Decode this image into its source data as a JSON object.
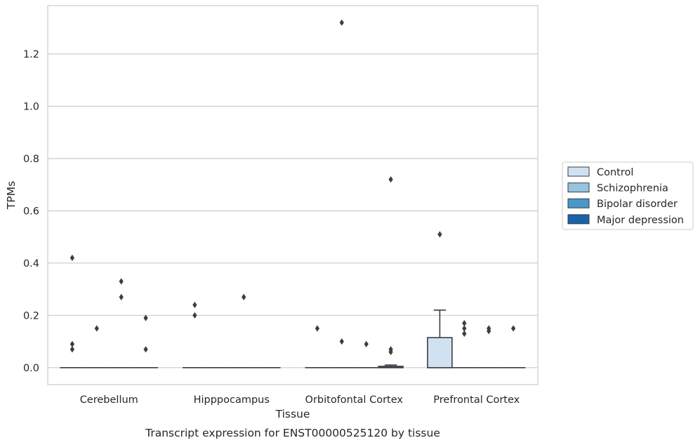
{
  "chart_data": {
    "type": "box",
    "caption": "Transcript expression for ENST00000525120 by tissue",
    "xlabel": "Tissue",
    "ylabel": "TPMs",
    "categories": [
      "Cerebellum",
      "Hipppocampus",
      "Orbitofontal Cortex",
      "Prefrontal Cortex"
    ],
    "ylim": [
      -0.065,
      1.385
    ],
    "yticks": [
      0.0,
      0.2,
      0.4,
      0.6,
      0.8,
      1.0,
      1.2
    ],
    "ytick_labels": [
      "0.0",
      "0.2",
      "0.4",
      "0.6",
      "0.8",
      "1.0",
      "1.2"
    ],
    "grid": "horizontal",
    "legend_position": "right",
    "series": [
      {
        "name": "Control",
        "color": "#d0e1f2",
        "boxes": [
          {
            "q1": 0,
            "median": 0,
            "q3": 0,
            "whisker_low": 0,
            "whisker_high": 0,
            "outliers": [
              0.42,
              0.09,
              0.07
            ]
          },
          {
            "q1": 0,
            "median": 0,
            "q3": 0,
            "whisker_low": 0,
            "whisker_high": 0,
            "outliers": [
              0.24,
              0.2
            ]
          },
          {
            "q1": 0,
            "median": 0,
            "q3": 0,
            "whisker_low": 0,
            "whisker_high": 0,
            "outliers": [
              0.15
            ]
          },
          {
            "q1": 0,
            "median": 0,
            "q3": 0.115,
            "whisker_low": 0,
            "whisker_high": 0.22,
            "outliers": [
              0.51
            ]
          }
        ]
      },
      {
        "name": "Schizophrenia",
        "color": "#94c4df",
        "boxes": [
          {
            "q1": 0,
            "median": 0,
            "q3": 0,
            "whisker_low": 0,
            "whisker_high": 0,
            "outliers": [
              0.15
            ]
          },
          {
            "q1": 0,
            "median": 0,
            "q3": 0,
            "whisker_low": 0,
            "whisker_high": 0,
            "outliers": []
          },
          {
            "q1": 0,
            "median": 0,
            "q3": 0,
            "whisker_low": 0,
            "whisker_high": 0,
            "outliers": [
              1.32,
              0.1
            ]
          },
          {
            "q1": 0,
            "median": 0,
            "q3": 0,
            "whisker_low": 0,
            "whisker_high": 0,
            "outliers": [
              0.17,
              0.15,
              0.13
            ]
          }
        ]
      },
      {
        "name": "Bipolar disorder",
        "color": "#4a98c9",
        "boxes": [
          {
            "q1": 0,
            "median": 0,
            "q3": 0,
            "whisker_low": 0,
            "whisker_high": 0,
            "outliers": [
              0.33,
              0.27
            ]
          },
          {
            "q1": 0,
            "median": 0,
            "q3": 0,
            "whisker_low": 0,
            "whisker_high": 0,
            "outliers": [
              0.27
            ]
          },
          {
            "q1": 0,
            "median": 0,
            "q3": 0,
            "whisker_low": 0,
            "whisker_high": 0,
            "outliers": [
              0.09
            ]
          },
          {
            "q1": 0,
            "median": 0,
            "q3": 0,
            "whisker_low": 0,
            "whisker_high": 0,
            "outliers": [
              0.15,
              0.14
            ]
          }
        ]
      },
      {
        "name": "Major depression",
        "color": "#1764ab",
        "boxes": [
          {
            "q1": 0,
            "median": 0,
            "q3": 0,
            "whisker_low": 0,
            "whisker_high": 0,
            "outliers": [
              0.19,
              0.07
            ]
          },
          {
            "q1": 0,
            "median": 0,
            "q3": 0,
            "whisker_low": 0,
            "whisker_high": 0,
            "outliers": []
          },
          {
            "q1": 0,
            "median": 0,
            "q3": 0.005,
            "whisker_low": 0,
            "whisker_high": 0.01,
            "outliers": [
              0.72,
              0.07,
              0.06
            ]
          },
          {
            "q1": 0,
            "median": 0,
            "q3": 0,
            "whisker_low": 0,
            "whisker_high": 0,
            "outliers": [
              0.15
            ]
          }
        ]
      }
    ]
  }
}
